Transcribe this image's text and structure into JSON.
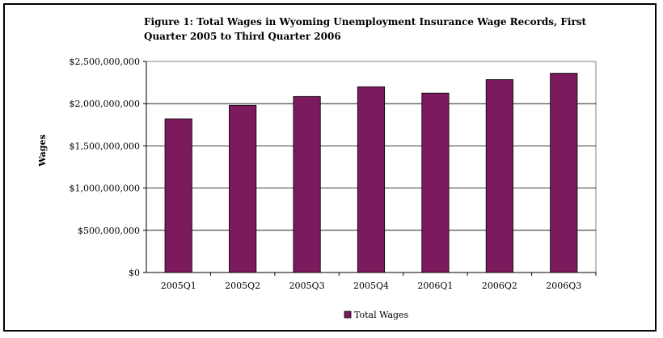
{
  "chart_data": {
    "type": "bar",
    "title": "Figure 1: Total Wages in Wyoming Unemployment Insurance Wage Records, First Quarter 2005 to Third Quarter 2006",
    "xlabel": "",
    "ylabel": "Wages",
    "categories": [
      "2005Q1",
      "2005Q2",
      "2005Q3",
      "2005Q4",
      "2006Q1",
      "2006Q2",
      "2006Q3"
    ],
    "series": [
      {
        "name": "Total Wages",
        "values": [
          1820000000,
          1980000000,
          2085000000,
          2200000000,
          2125000000,
          2285000000,
          2360000000
        ],
        "color": "#7b1a5c"
      }
    ],
    "ylim": [
      0,
      2500000000
    ],
    "yticks": [
      "$0",
      "$500,000,000",
      "$1,000,000,000",
      "$1,500,000,000",
      "$2,000,000,000",
      "$2,500,000,000"
    ],
    "grid": true,
    "legend": "bottom"
  }
}
